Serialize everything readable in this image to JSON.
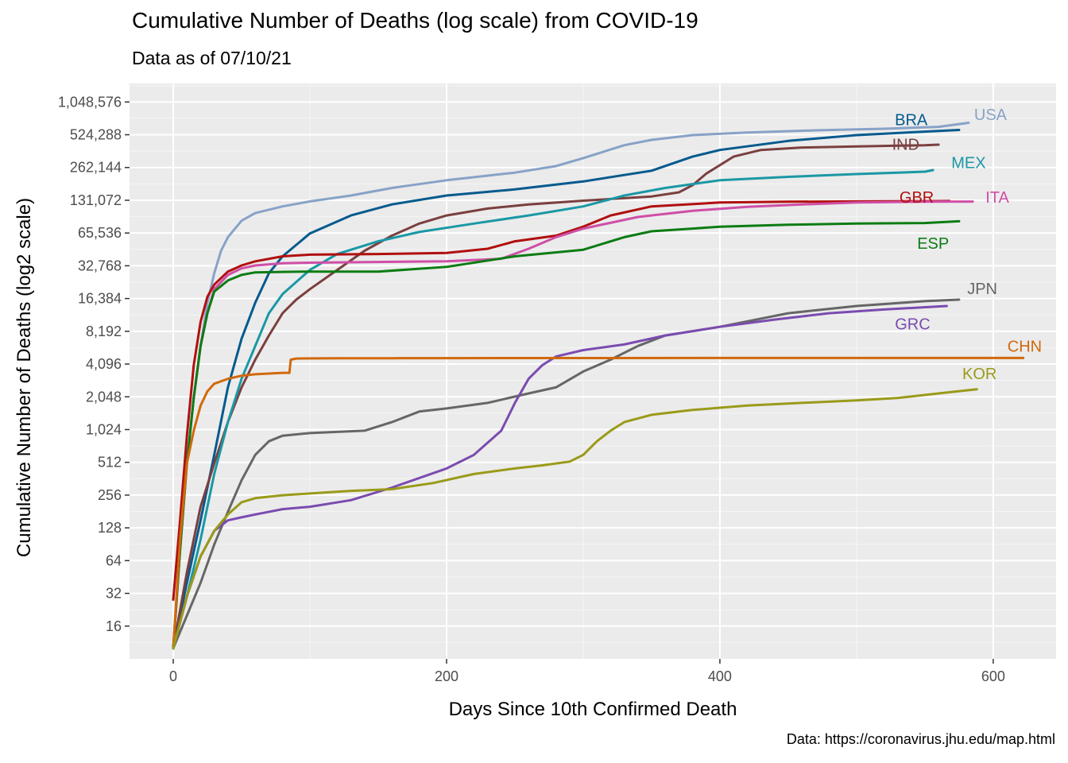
{
  "chart_data": {
    "type": "line",
    "title": "Cumulative Number of Deaths (log scale) from COVID-19",
    "subtitle": "Data as of 07/10/21",
    "xlabel": "Days Since 10th Confirmed Death",
    "ylabel": "Cumulative Number of Deaths (log2 scale)",
    "caption": "Data: https://coronavirus.jhu.edu/map.html",
    "y_scale": "log2",
    "xlim": [
      -32,
      646
    ],
    "ylim": [
      8,
      1552000
    ],
    "grid": true,
    "legend": "none (direct labels)",
    "x_ticks": [
      0,
      200,
      400,
      600
    ],
    "x_tick_labels": [
      "0",
      "200",
      "400",
      "600"
    ],
    "y_ticks": [
      16,
      32,
      64,
      128,
      256,
      512,
      1024,
      2048,
      4096,
      8192,
      16384,
      32768,
      65536,
      131072,
      262144,
      524288,
      1048576
    ],
    "y_tick_labels": [
      "16",
      "32",
      "64",
      "128",
      "256",
      "512",
      "1,024",
      "2,048",
      "4,096",
      "8,192",
      "16,384",
      "32,768",
      "65,536",
      "131,072",
      "262,144",
      "524,288",
      "1,048,576"
    ],
    "series": [
      {
        "name": "USA",
        "color": "#87a2c7",
        "label_x": 598,
        "label_y": 805000,
        "x": [
          0,
          5,
          10,
          15,
          20,
          25,
          30,
          35,
          40,
          50,
          60,
          80,
          100,
          130,
          160,
          200,
          250,
          280,
          300,
          330,
          350,
          380,
          420,
          470,
          520,
          560,
          582
        ],
        "y": [
          10,
          80,
          500,
          2000,
          6000,
          15000,
          28000,
          45000,
          60000,
          85000,
          100000,
          115000,
          128000,
          145000,
          170000,
          200000,
          235000,
          270000,
          320000,
          420000,
          470000,
          520000,
          550000,
          575000,
          595000,
          620000,
          675000
        ]
      },
      {
        "name": "BRA",
        "color": "#045a8d",
        "label_x": 540,
        "label_y": 720000,
        "x": [
          0,
          10,
          20,
          30,
          40,
          50,
          60,
          70,
          80,
          100,
          130,
          160,
          200,
          250,
          300,
          350,
          380,
          400,
          450,
          500,
          550,
          575
        ],
        "y": [
          10,
          40,
          150,
          600,
          2500,
          7000,
          15000,
          28000,
          40000,
          65000,
          95000,
          120000,
          145000,
          165000,
          195000,
          245000,
          330000,
          380000,
          460000,
          520000,
          560000,
          580000
        ]
      },
      {
        "name": "IND",
        "color": "#7b3f3f",
        "label_x": 536,
        "label_y": 430000,
        "x": [
          0,
          10,
          20,
          30,
          40,
          50,
          60,
          70,
          80,
          90,
          100,
          120,
          140,
          160,
          180,
          200,
          230,
          260,
          300,
          350,
          370,
          380,
          390,
          410,
          430,
          460,
          500,
          550,
          560
        ],
        "y": [
          10,
          50,
          200,
          500,
          1200,
          2500,
          4500,
          7500,
          12000,
          16000,
          20000,
          30000,
          45000,
          62000,
          80000,
          95000,
          110000,
          120000,
          130000,
          142000,
          155000,
          180000,
          230000,
          330000,
          380000,
          400000,
          410000,
          420000,
          425000
        ]
      },
      {
        "name": "MEX",
        "color": "#1a98a5",
        "label_x": 582,
        "label_y": 290000,
        "x": [
          0,
          10,
          20,
          30,
          40,
          50,
          60,
          70,
          80,
          100,
          120,
          150,
          180,
          220,
          260,
          300,
          330,
          360,
          400,
          450,
          500,
          550,
          556
        ],
        "y": [
          10,
          30,
          100,
          400,
          1200,
          3000,
          6000,
          12000,
          18000,
          30000,
          42000,
          55000,
          67000,
          80000,
          95000,
          115000,
          145000,
          170000,
          200000,
          215000,
          228000,
          240000,
          248000
        ]
      },
      {
        "name": "GBR",
        "color": "#b10f0f",
        "label_x": 544,
        "label_y": 140000,
        "x": [
          0,
          5,
          10,
          15,
          20,
          25,
          30,
          40,
          50,
          60,
          80,
          100,
          150,
          200,
          230,
          250,
          280,
          300,
          320,
          350,
          400,
          450,
          500,
          550,
          568
        ],
        "y": [
          28,
          150,
          900,
          4000,
          10000,
          17000,
          22000,
          29000,
          33000,
          36000,
          40000,
          41500,
          42000,
          43000,
          47000,
          55000,
          62000,
          75000,
          95000,
          115000,
          125000,
          127000,
          128000,
          128500,
          129000
        ]
      },
      {
        "name": "ITA",
        "color": "#cf4fa6",
        "label_x": 603,
        "label_y": 140000,
        "x": [
          0,
          5,
          10,
          15,
          20,
          25,
          30,
          40,
          50,
          60,
          80,
          100,
          150,
          200,
          240,
          260,
          280,
          300,
          340,
          380,
          420,
          460,
          500,
          550,
          585
        ],
        "y": [
          10,
          80,
          500,
          2000,
          6000,
          12000,
          20000,
          27000,
          31000,
          33000,
          34500,
          35000,
          35500,
          36000,
          38000,
          47000,
          60000,
          72000,
          92000,
          105000,
          114000,
          120000,
          125000,
          127000,
          127500
        ]
      },
      {
        "name": "ESP",
        "color": "#0c7c13",
        "label_x": 556,
        "label_y": 53000,
        "x": [
          0,
          5,
          10,
          15,
          20,
          25,
          30,
          40,
          50,
          60,
          80,
          100,
          150,
          200,
          250,
          300,
          330,
          350,
          380,
          400,
          450,
          500,
          550,
          575
        ],
        "y": [
          10,
          80,
          500,
          2000,
          6000,
          12000,
          19000,
          24000,
          27000,
          28500,
          28800,
          29000,
          29000,
          32000,
          40000,
          46000,
          60000,
          68000,
          72000,
          75000,
          78000,
          80000,
          81000,
          84000
        ]
      },
      {
        "name": "JPN",
        "color": "#666666",
        "label_x": 592,
        "label_y": 20200,
        "x": [
          0,
          10,
          20,
          30,
          40,
          50,
          60,
          70,
          80,
          100,
          140,
          160,
          180,
          200,
          230,
          260,
          280,
          300,
          320,
          340,
          360,
          400,
          450,
          500,
          550,
          575
        ],
        "y": [
          10,
          20,
          40,
          90,
          180,
          350,
          600,
          800,
          900,
          950,
          1000,
          1200,
          1500,
          1600,
          1800,
          2200,
          2500,
          3500,
          4500,
          6000,
          7500,
          9000,
          12000,
          14000,
          15500,
          16000
        ]
      },
      {
        "name": "GRC",
        "color": "#7b4bb0",
        "label_x": 541,
        "label_y": 9600,
        "x": [
          0,
          10,
          20,
          30,
          40,
          50,
          60,
          80,
          100,
          130,
          160,
          200,
          220,
          240,
          250,
          260,
          270,
          280,
          300,
          330,
          360,
          400,
          440,
          480,
          520,
          566
        ],
        "y": [
          10,
          30,
          70,
          120,
          150,
          160,
          170,
          190,
          200,
          230,
          300,
          450,
          600,
          1000,
          1800,
          3000,
          4000,
          4800,
          5500,
          6200,
          7500,
          9000,
          10500,
          12000,
          13000,
          14000
        ]
      },
      {
        "name": "CHN",
        "color": "#d1690c",
        "label_x": 623,
        "label_y": 6000,
        "x": [
          0,
          5,
          10,
          15,
          20,
          25,
          30,
          40,
          50,
          60,
          80,
          85,
          86,
          90,
          120,
          160,
          200,
          300,
          400,
          500,
          600,
          622
        ],
        "y": [
          10,
          100,
          500,
          1000,
          1700,
          2300,
          2700,
          3000,
          3200,
          3300,
          3400,
          3400,
          4500,
          4600,
          4630,
          4634,
          4640,
          4650,
          4660,
          4660,
          4660,
          4660
        ]
      },
      {
        "name": "KOR",
        "color": "#9a9a19",
        "label_x": 590,
        "label_y": 3350,
        "x": [
          0,
          10,
          20,
          30,
          40,
          50,
          60,
          80,
          100,
          130,
          160,
          190,
          220,
          250,
          270,
          290,
          300,
          310,
          320,
          330,
          350,
          380,
          420,
          460,
          500,
          530,
          560,
          588
        ],
        "y": [
          10,
          30,
          70,
          120,
          170,
          220,
          240,
          255,
          265,
          280,
          290,
          330,
          400,
          450,
          480,
          520,
          600,
          800,
          1000,
          1200,
          1400,
          1550,
          1700,
          1800,
          1900,
          2000,
          2200,
          2400
        ]
      }
    ]
  }
}
